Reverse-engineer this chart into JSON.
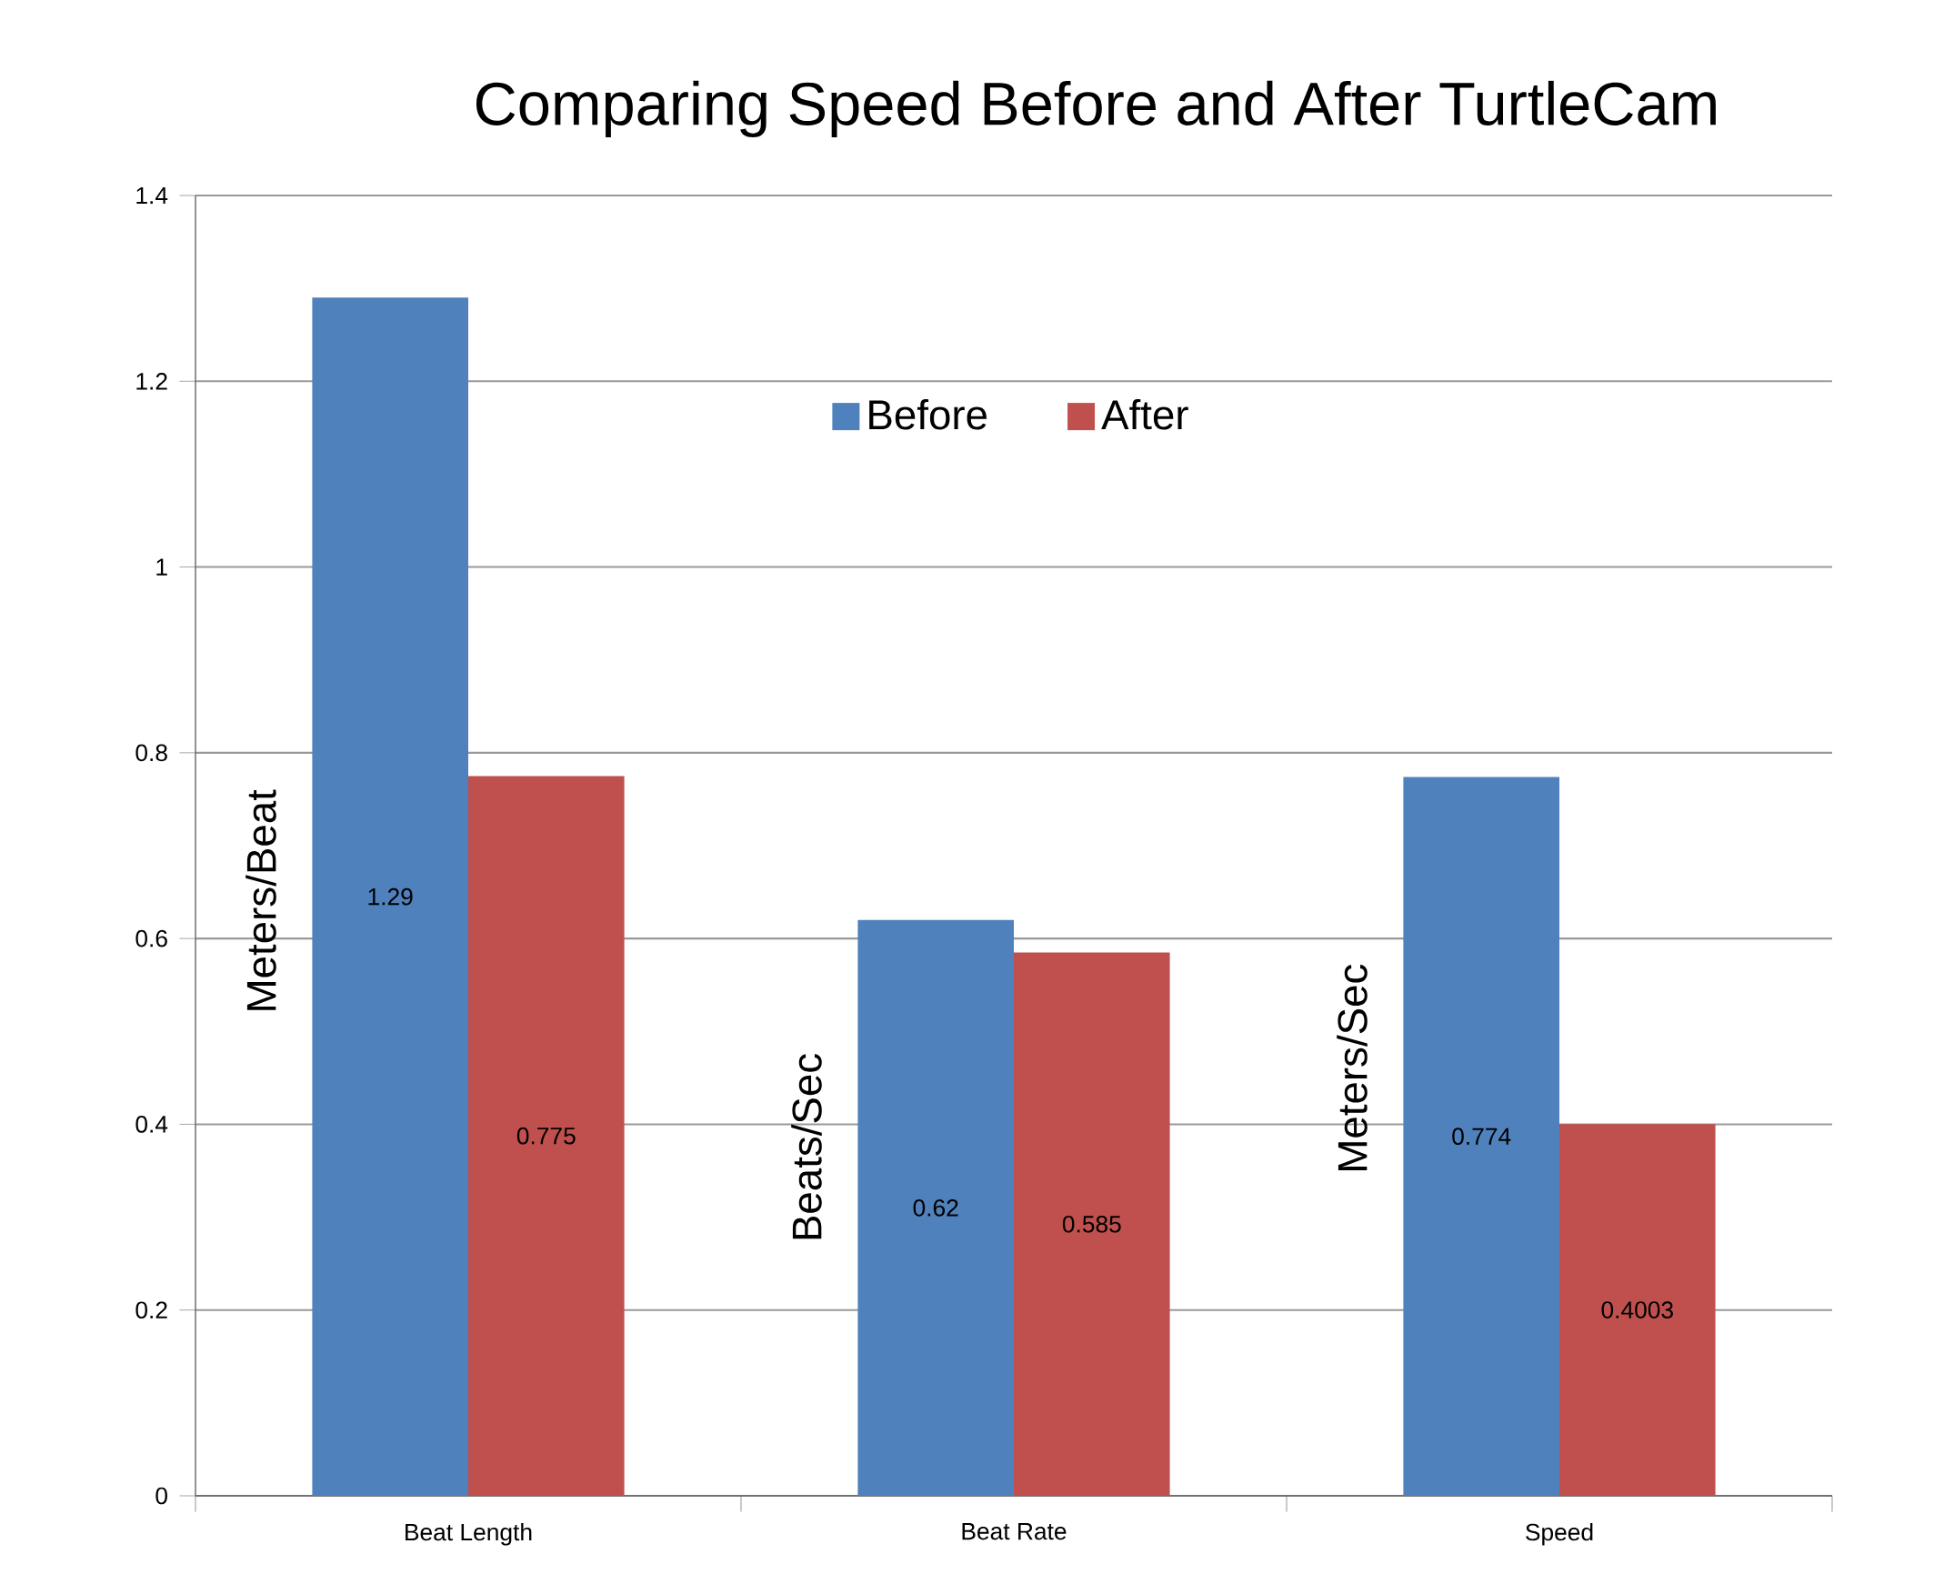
{
  "chart_data": {
    "type": "bar",
    "title": "Comparing Speed Before and After TurtleCam",
    "categories": [
      "Beat Length",
      "Beat Rate",
      "Speed"
    ],
    "series": [
      {
        "name": "Before",
        "color": "#4f81bd",
        "values": [
          1.29,
          0.62,
          0.774
        ]
      },
      {
        "name": "After",
        "color": "#c0504d",
        "values": [
          0.775,
          0.585,
          0.4003
        ]
      }
    ],
    "ylim": [
      0,
      1.4
    ],
    "yticks": [
      0,
      0.2,
      0.4,
      0.6,
      0.8,
      1,
      1.2,
      1.4
    ],
    "grid": "y",
    "legend": "top",
    "data_labels": true,
    "annotations": [
      "Meters/Beat",
      "Beats/Sec",
      "Meters/Sec"
    ]
  }
}
